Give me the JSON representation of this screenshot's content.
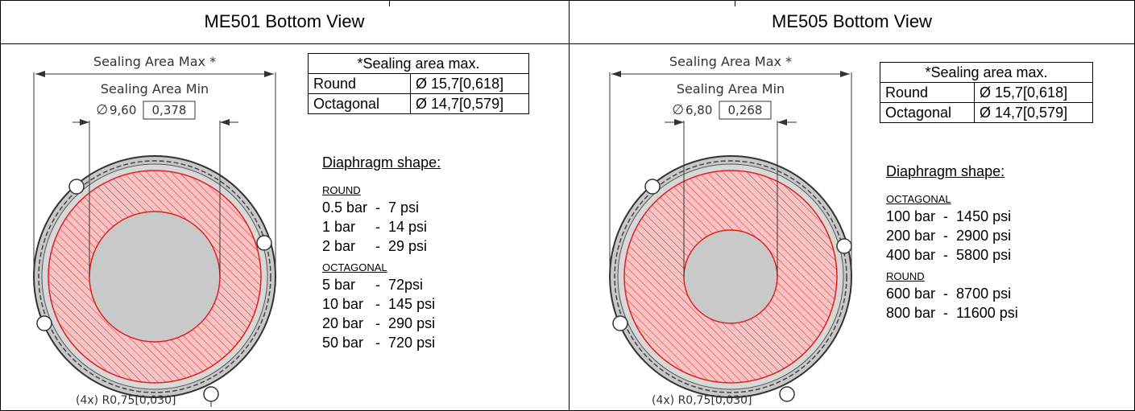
{
  "panels": [
    {
      "title": "ME501 Bottom View",
      "drawing": {
        "sealing_max_label": "Sealing Area Max *",
        "sealing_min_label": "Sealing Area Min",
        "diameter_symbol": "∅",
        "diameter_value": "9,60",
        "diameter_value_in": "0,378",
        "radius_note": "(4x) R0,75[0,030]"
      },
      "sealing_table": {
        "header": "*Sealing area max.",
        "rows": [
          {
            "shape": "Round",
            "value": "Ø 15,7[0,618]"
          },
          {
            "shape": "Octagonal",
            "value": "Ø 14,7[0,579]"
          }
        ]
      },
      "diaphragm": {
        "heading": "Diaphragm shape:",
        "groups": [
          {
            "label": "ROUND",
            "rows": [
              "0.5 bar  -  7 psi",
              "1 bar     -  14 psi",
              "2 bar     -  29 psi"
            ]
          },
          {
            "label": "OCTAGONAL",
            "rows": [
              "5 bar     -  72psi",
              "10 bar   -  145 psi",
              "20 bar   -  290 psi",
              "50 bar   -  720 psi"
            ]
          }
        ]
      }
    },
    {
      "title": "ME505 Bottom View",
      "drawing": {
        "sealing_max_label": "Sealing Area Max *",
        "sealing_min_label": "Sealing Area Min",
        "diameter_symbol": "∅",
        "diameter_value": "6,80",
        "diameter_value_in": "0,268",
        "radius_note": "(4x) R0,75[0,030]"
      },
      "sealing_table": {
        "header": "*Sealing area max.",
        "rows": [
          {
            "shape": "Round",
            "value": "Ø 15,7[0,618]"
          },
          {
            "shape": "Octagonal",
            "value": "Ø 14,7[0,579]"
          }
        ]
      },
      "diaphragm": {
        "heading": "Diaphragm shape:",
        "groups": [
          {
            "label": "OCTAGONAL",
            "rows": [
              "100 bar  -  1450 psi",
              "200 bar  -  2900 psi",
              "400 bar  -  5800 psi"
            ]
          },
          {
            "label": "ROUND",
            "rows": [
              "600 bar  -  8700 psi",
              "800 bar  -  11600 psi"
            ]
          }
        ]
      }
    }
  ],
  "colors": {
    "hatch": "#e02020",
    "disc_fill": "#f4b6b6",
    "body_gray": "#c8c8c8",
    "border": "#000000"
  }
}
